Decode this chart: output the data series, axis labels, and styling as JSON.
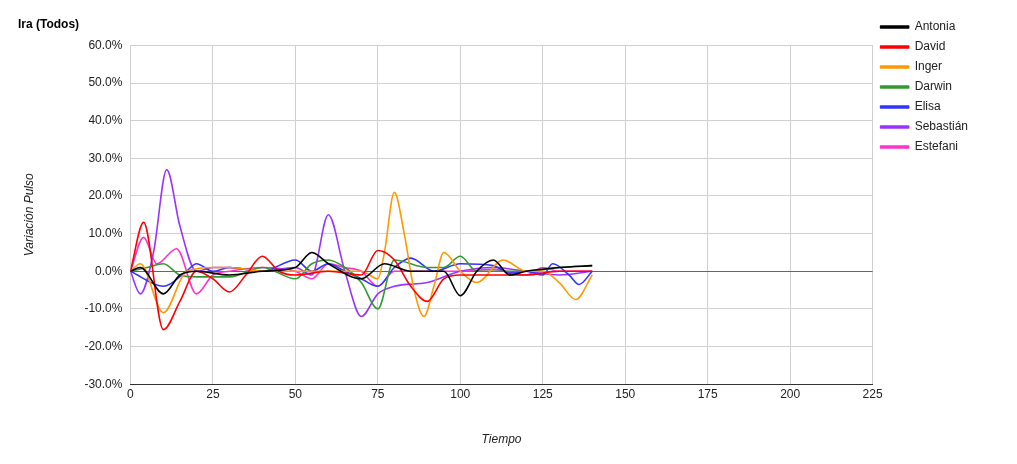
{
  "chart_data": {
    "type": "line",
    "title": "Ira (Todos)",
    "xlabel": "Tiempo",
    "ylabel": "Variación Pulso",
    "xlim": [
      0,
      225
    ],
    "xticks": [
      0,
      25,
      50,
      75,
      100,
      125,
      150,
      175,
      200,
      225
    ],
    "ylim": [
      -30,
      60
    ],
    "yticks": [
      {
        "value": -30,
        "label": "-30.0%"
      },
      {
        "value": -20,
        "label": "-20.0%"
      },
      {
        "value": -10,
        "label": "-10.0%"
      },
      {
        "value": 0,
        "label": "0.0%"
      },
      {
        "value": 10,
        "label": "10.0%"
      },
      {
        "value": 20,
        "label": "20.0%"
      },
      {
        "value": 30,
        "label": "30.0%"
      },
      {
        "value": 40,
        "label": "40.0%"
      },
      {
        "value": 50,
        "label": "50.0%"
      },
      {
        "value": 60,
        "label": "60.0%"
      }
    ],
    "grid": true,
    "legend": "right",
    "marker": "none",
    "line_style": "solid",
    "series": [
      {
        "name": "Antonia",
        "color": "#000000",
        "x": [
          0,
          3,
          10,
          15,
          20,
          30,
          40,
          50,
          55,
          60,
          70,
          77,
          85,
          95,
          100,
          105,
          110,
          115,
          120,
          130,
          140
        ],
        "values": [
          0,
          1,
          -6,
          -1,
          0,
          -1,
          0,
          1,
          5,
          2,
          -2,
          2,
          0,
          0,
          -6.5,
          0,
          3,
          -1,
          0,
          1,
          1.5
        ]
      },
      {
        "name": "David",
        "color": "#ff0000",
        "x": [
          0,
          4,
          10,
          15,
          20,
          25,
          30,
          35,
          40,
          45,
          50,
          60,
          70,
          75,
          80,
          85,
          90,
          95,
          100,
          110,
          120,
          130,
          140
        ],
        "values": [
          0,
          13,
          -15.5,
          -8,
          0,
          -2,
          -5.5,
          -1,
          4,
          0,
          -1,
          0,
          -1,
          5.5,
          3,
          -4,
          -8,
          -2,
          -1,
          -1,
          -1,
          0,
          0
        ]
      },
      {
        "name": "Inger",
        "color": "#ff9900",
        "x": [
          0,
          3,
          10,
          17,
          25,
          30,
          40,
          50,
          60,
          70,
          75,
          77,
          80,
          83,
          86,
          89,
          92,
          95,
          100,
          105,
          113,
          120,
          125,
          130,
          135,
          140
        ],
        "values": [
          0,
          2,
          -11,
          0,
          1,
          1,
          0,
          0,
          0,
          0,
          -2,
          5,
          21,
          10,
          -5,
          -12,
          -4,
          5,
          0,
          -3,
          3,
          0,
          0,
          -3,
          -7.5,
          -1
        ]
      },
      {
        "name": "Darwin",
        "color": "#339933",
        "x": [
          0,
          5,
          10,
          15,
          20,
          30,
          40,
          50,
          55,
          60,
          65,
          70,
          75,
          80,
          90,
          95,
          100,
          105,
          110,
          120,
          130,
          140
        ],
        "values": [
          0,
          1,
          2,
          -1,
          -1.5,
          -1.5,
          1,
          -2,
          2,
          3,
          1,
          -3,
          -10,
          3,
          1,
          1,
          4,
          0,
          0,
          0,
          1,
          1.5
        ]
      },
      {
        "name": "Elisa",
        "color": "#3333ff",
        "x": [
          0,
          10,
          17,
          20,
          25,
          30,
          40,
          50,
          55,
          60,
          65,
          70,
          75,
          80,
          85,
          92,
          100,
          110,
          115,
          120,
          125,
          128,
          133,
          136,
          140
        ],
        "values": [
          0,
          -4,
          0,
          2,
          0,
          1,
          0,
          3,
          0,
          2,
          0,
          -2,
          -4,
          1,
          3.5,
          0,
          2,
          1.5,
          -0.5,
          0,
          -1,
          2,
          -1,
          -3.5,
          0
        ]
      },
      {
        "name": "Sebastián",
        "color": "#9933ff",
        "x": [
          0,
          3,
          7,
          11,
          15,
          20,
          25,
          30,
          40,
          50,
          55,
          60,
          65,
          70,
          75,
          80,
          90,
          100,
          110,
          120,
          130,
          140
        ],
        "values": [
          0,
          -6,
          5,
          27,
          12,
          0,
          1,
          1,
          0,
          1,
          -1,
          15,
          0,
          -12,
          -6,
          -4,
          -3,
          0,
          1,
          0,
          -1,
          0
        ]
      },
      {
        "name": "Estefani",
        "color": "#ff33cc",
        "x": [
          0,
          4,
          8,
          14,
          20,
          25,
          30,
          40,
          50,
          55,
          60,
          65,
          70,
          75,
          80,
          90,
          100,
          110,
          120,
          125,
          130,
          140
        ],
        "values": [
          0,
          9,
          2,
          6,
          -6,
          -1,
          0,
          1,
          0,
          -2,
          2,
          1,
          0,
          -4,
          0,
          0,
          0,
          0.5,
          -1,
          1,
          0,
          0
        ]
      }
    ]
  }
}
